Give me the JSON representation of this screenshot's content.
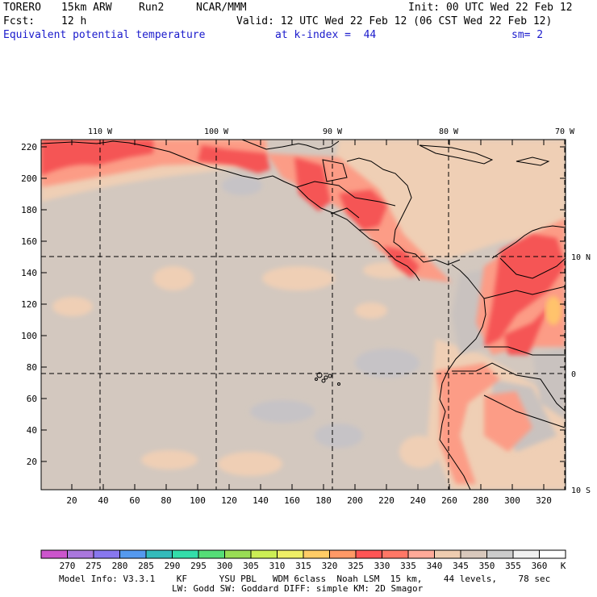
{
  "header": {
    "model": "TORERO",
    "resolution": "15km ARW",
    "run": "Run2",
    "org": "NCAR/MMM",
    "init": "Init: 00 UTC Wed 22 Feb 12",
    "fcst_label": "Fcst:",
    "fcst_value": "12 h",
    "valid": "Valid: 12 UTC Wed 22 Feb 12 (06 CST Wed 22 Feb 12)",
    "field": "Equivalent potential temperature",
    "level": "at k-index =  44",
    "smooth": "sm= 2"
  },
  "map": {
    "x_ticks": [
      "20",
      "40",
      "60",
      "80",
      "100",
      "120",
      "140",
      "160",
      "180",
      "200",
      "220",
      "240",
      "260",
      "280",
      "300",
      "320"
    ],
    "y_ticks": [
      "20",
      "40",
      "60",
      "80",
      "100",
      "120",
      "140",
      "160",
      "180",
      "200",
      "220"
    ],
    "lon_labels": [
      "110 W",
      "100 W",
      "90 W",
      "80 W",
      "70 W"
    ],
    "lat_labels": [
      "10 N",
      "0",
      "10 S"
    ]
  },
  "colorbar": {
    "values": [
      "270",
      "275",
      "280",
      "285",
      "290",
      "295",
      "300",
      "305",
      "310",
      "315",
      "320",
      "325",
      "330",
      "335",
      "340",
      "345",
      "350",
      "355",
      "360"
    ],
    "unit": "K",
    "colors": [
      "#cc55cc",
      "#aa77dd",
      "#8877ee",
      "#5599ee",
      "#33bbbb",
      "#33ddaa",
      "#55dd77",
      "#99dd55",
      "#ccee55",
      "#eeee66",
      "#ffcc66",
      "#ff9966",
      "#ff5555",
      "#ff7766",
      "#ffaa99",
      "#eeccb0",
      "#d8c8bc",
      "#cccccc",
      "#f0f0f0",
      "#ffffff"
    ]
  },
  "footer": {
    "line1": "Model Info: V3.3.1    KF      YSU PBL   WDM 6class  Noah LSM  15 km,    44 levels,    78 sec",
    "line2": "LW: Godd SW: Goddard DIFF: simple KM: 2D Smagor"
  }
}
